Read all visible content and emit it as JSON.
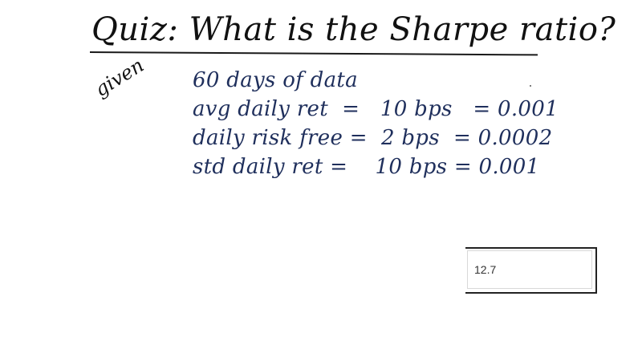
{
  "quiz": {
    "title": "Quiz: What is the Sharpe ratio?",
    "given_label": "given",
    "given_lines": [
      "60 days of data",
      "avg daily ret  =   10 bps   = 0.001",
      "daily risk free =  2 bps  = 0.0002",
      "std daily ret =    10 bps = 0.001"
    ]
  },
  "answer": {
    "value": "12.7"
  },
  "colors": {
    "ink_black": "#111111",
    "ink_blue": "#1f2f5c"
  }
}
